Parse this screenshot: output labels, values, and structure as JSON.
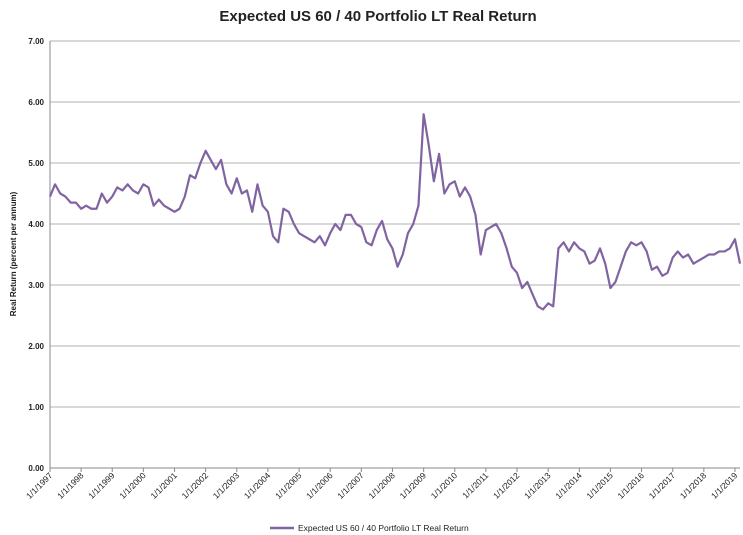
{
  "chart_data": {
    "type": "line",
    "title": "Expected US 60 / 40 Portfolio LT Real Return",
    "y_label": "Real Return (percent per annum)",
    "x": [
      "1/1/1997",
      "3/1/1997",
      "5/1/1997",
      "7/1/1997",
      "9/1/1997",
      "11/1/1997",
      "1/1/1998",
      "3/1/1998",
      "5/1/1998",
      "7/1/1998",
      "9/1/1998",
      "11/1/1998",
      "1/1/1999",
      "3/1/1999",
      "5/1/1999",
      "7/1/1999",
      "9/1/1999",
      "11/1/1999",
      "1/1/2000",
      "3/1/2000",
      "5/1/2000",
      "7/1/2000",
      "9/1/2000",
      "11/1/2000",
      "1/1/2001",
      "3/1/2001",
      "5/1/2001",
      "7/1/2001",
      "9/1/2001",
      "11/1/2001",
      "1/1/2002",
      "3/1/2002",
      "5/1/2002",
      "7/1/2002",
      "9/1/2002",
      "11/1/2002",
      "1/1/2003",
      "3/1/2003",
      "5/1/2003",
      "7/1/2003",
      "9/1/2003",
      "11/1/2003",
      "1/1/2004",
      "3/1/2004",
      "5/1/2004",
      "7/1/2004",
      "9/1/2004",
      "11/1/2004",
      "1/1/2005",
      "3/1/2005",
      "5/1/2005",
      "7/1/2005",
      "9/1/2005",
      "11/1/2005",
      "1/1/2006",
      "3/1/2006",
      "5/1/2006",
      "7/1/2006",
      "9/1/2006",
      "11/1/2006",
      "1/1/2007",
      "3/1/2007",
      "5/1/2007",
      "7/1/2007",
      "9/1/2007",
      "11/1/2007",
      "1/1/2008",
      "3/1/2008",
      "5/1/2008",
      "7/1/2008",
      "9/1/2008",
      "11/1/2008",
      "1/1/2009",
      "3/1/2009",
      "5/1/2009",
      "7/1/2009",
      "9/1/2009",
      "11/1/2009",
      "1/1/2010",
      "3/1/2010",
      "5/1/2010",
      "7/1/2010",
      "9/1/2010",
      "11/1/2010",
      "1/1/2011",
      "3/1/2011",
      "5/1/2011",
      "7/1/2011",
      "9/1/2011",
      "11/1/2011",
      "1/1/2012",
      "3/1/2012",
      "5/1/2012",
      "7/1/2012",
      "9/1/2012",
      "11/1/2012",
      "1/1/2013",
      "3/1/2013",
      "5/1/2013",
      "7/1/2013",
      "9/1/2013",
      "11/1/2013",
      "1/1/2014",
      "3/1/2014",
      "5/1/2014",
      "7/1/2014",
      "9/1/2014",
      "11/1/2014",
      "1/1/2015",
      "3/1/2015",
      "5/1/2015",
      "7/1/2015",
      "9/1/2015",
      "11/1/2015",
      "1/1/2016",
      "3/1/2016",
      "5/1/2016",
      "7/1/2016",
      "9/1/2016",
      "11/1/2016",
      "1/1/2017",
      "3/1/2017",
      "5/1/2017",
      "7/1/2017",
      "9/1/2017",
      "11/1/2017",
      "1/1/2018",
      "3/1/2018",
      "5/1/2018",
      "7/1/2018",
      "9/1/2018",
      "11/1/2018",
      "1/1/2019",
      "3/1/2019"
    ],
    "series": [
      {
        "name": "Expected US 60 / 40 Portfolio LT Real Return",
        "color": "#8064a2",
        "values": [
          4.45,
          4.65,
          4.5,
          4.45,
          4.35,
          4.35,
          4.25,
          4.3,
          4.25,
          4.25,
          4.5,
          4.35,
          4.45,
          4.6,
          4.55,
          4.65,
          4.55,
          4.5,
          4.65,
          4.6,
          4.3,
          4.4,
          4.3,
          4.25,
          4.2,
          4.25,
          4.45,
          4.8,
          4.75,
          5.0,
          5.2,
          5.05,
          4.9,
          5.05,
          4.65,
          4.5,
          4.75,
          4.5,
          4.55,
          4.2,
          4.65,
          4.3,
          4.2,
          3.8,
          3.7,
          4.25,
          4.2,
          4.0,
          3.85,
          3.8,
          3.75,
          3.7,
          3.8,
          3.65,
          3.85,
          4.0,
          3.9,
          4.15,
          4.15,
          4.0,
          3.95,
          3.7,
          3.65,
          3.9,
          4.05,
          3.75,
          3.6,
          3.3,
          3.5,
          3.85,
          4.0,
          4.3,
          5.8,
          5.3,
          4.7,
          5.15,
          4.5,
          4.65,
          4.7,
          4.45,
          4.6,
          4.45,
          4.15,
          3.5,
          3.9,
          3.95,
          4.0,
          3.85,
          3.6,
          3.3,
          3.2,
          2.95,
          3.05,
          2.85,
          2.65,
          2.6,
          2.7,
          2.65,
          3.6,
          3.7,
          3.55,
          3.7,
          3.6,
          3.55,
          3.35,
          3.4,
          3.6,
          3.35,
          2.95,
          3.05,
          3.3,
          3.55,
          3.7,
          3.65,
          3.7,
          3.55,
          3.25,
          3.3,
          3.15,
          3.2,
          3.45,
          3.55,
          3.45,
          3.5,
          3.35,
          3.4,
          3.45,
          3.5,
          3.5,
          3.55,
          3.55,
          3.6,
          3.75,
          3.35
        ]
      }
    ],
    "xlim": [
      "1/1/1997",
      "3/1/2019"
    ],
    "xticks": [
      "1/1/1997",
      "1/1/1998",
      "1/1/1999",
      "1/1/2000",
      "1/1/2001",
      "1/1/2002",
      "1/1/2003",
      "1/1/2004",
      "1/1/2005",
      "1/1/2006",
      "1/1/2007",
      "1/1/2008",
      "1/1/2009",
      "1/1/2010",
      "1/1/2011",
      "1/1/2012",
      "1/1/2013",
      "1/1/2014",
      "1/1/2015",
      "1/1/2016",
      "1/1/2017",
      "1/1/2018",
      "1/1/2019"
    ],
    "ylim": [
      0,
      7
    ],
    "yticks": [
      {
        "value": 0,
        "label": "0.00"
      },
      {
        "value": 1,
        "label": "1.00"
      },
      {
        "value": 2,
        "label": "2.00"
      },
      {
        "value": 3,
        "label": "3.00"
      },
      {
        "value": 4,
        "label": "4.00"
      },
      {
        "value": 5,
        "label": "5.00"
      },
      {
        "value": 6,
        "label": "6.00"
      },
      {
        "value": 7,
        "label": "7.00"
      }
    ],
    "grid": true,
    "legend": "bottom"
  }
}
